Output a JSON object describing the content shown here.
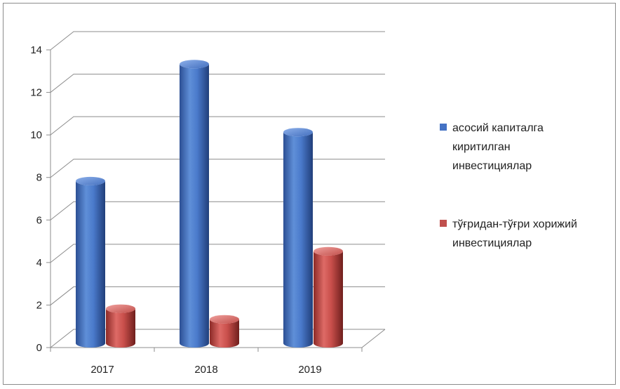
{
  "chart_data": {
    "type": "bar",
    "style": "3d-cylinder",
    "categories": [
      "2017",
      "2018",
      "2019"
    ],
    "series": [
      {
        "name": "асосий капиталга киритилган инвестициялар",
        "color": "#4472c4",
        "values": [
          7.5,
          13.0,
          9.8
        ]
      },
      {
        "name": "тўғридан-тўғри хорижий инвестициялар",
        "color": "#c0504d",
        "values": [
          1.5,
          1.0,
          4.2
        ]
      }
    ],
    "yticks": [
      "0",
      "2",
      "4",
      "6",
      "8",
      "10",
      "12",
      "14"
    ],
    "ylim": [
      0,
      14
    ],
    "grid": true,
    "legend_position": "right"
  }
}
